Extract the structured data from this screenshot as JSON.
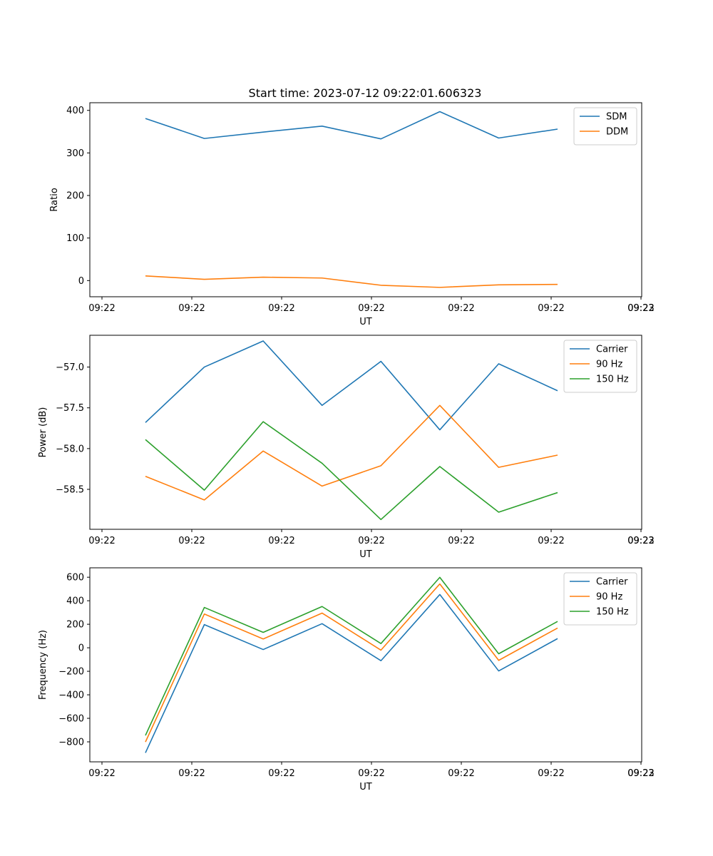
{
  "figure_title": "Start time: 2023-07-12 09:22:01.606323",
  "chart_data": [
    {
      "type": "line",
      "title": "Start time: 2023-07-12 09:22:01.606323",
      "xlabel": "UT",
      "ylabel": "Ratio",
      "x_ticks": [
        "09:22",
        "09:22",
        "09:22",
        "09:22",
        "09:22",
        "09:22",
        "09:22"
      ],
      "x_tick_end": "09:23",
      "ylim": [
        -38,
        418
      ],
      "yticks": [
        0,
        100,
        200,
        300,
        400
      ],
      "legend_position": "top-right",
      "series": [
        {
          "name": "SDM",
          "color": "#1f77b4",
          "values": [
            381,
            334,
            349,
            363,
            333,
            397,
            335,
            356
          ]
        },
        {
          "name": "DDM",
          "color": "#ff7f0e",
          "values": [
            11,
            3,
            8,
            6,
            -11,
            -16,
            -10,
            -9
          ]
        }
      ]
    },
    {
      "type": "line",
      "title": "",
      "xlabel": "UT",
      "ylabel": "Power (dB)",
      "x_ticks": [
        "09:22",
        "09:22",
        "09:22",
        "09:22",
        "09:22",
        "09:22",
        "09:22"
      ],
      "x_tick_end": "09:23",
      "ylim": [
        -58.99,
        -56.61
      ],
      "yticks": [
        -57.0,
        -57.5,
        -58.0,
        -58.5
      ],
      "ytick_labels": [
        "−57.0",
        "−57.5",
        "−58.0",
        "−58.5"
      ],
      "legend_position": "top-right",
      "series": [
        {
          "name": "Carrier",
          "color": "#1f77b4",
          "values": [
            -57.68,
            -57.0,
            -56.68,
            -57.47,
            -56.93,
            -57.77,
            -56.96,
            -57.29
          ]
        },
        {
          "name": "90 Hz",
          "color": "#ff7f0e",
          "values": [
            -58.34,
            -58.63,
            -58.03,
            -58.46,
            -58.21,
            -57.47,
            -58.23,
            -58.08
          ]
        },
        {
          "name": "150 Hz",
          "color": "#2ca02c",
          "values": [
            -57.89,
            -58.51,
            -57.67,
            -58.18,
            -58.87,
            -58.22,
            -58.78,
            -58.54
          ]
        }
      ]
    },
    {
      "type": "line",
      "title": "",
      "xlabel": "UT",
      "ylabel": "Frequency (Hz)",
      "x_ticks": [
        "09:22",
        "09:22",
        "09:22",
        "09:22",
        "09:22",
        "09:22",
        "09:22"
      ],
      "x_tick_end": "09:23",
      "ylim": [
        -970,
        680
      ],
      "yticks": [
        600,
        400,
        200,
        0,
        -200,
        -400,
        -600,
        -800
      ],
      "ytick_labels": [
        "600",
        "400",
        "200",
        "0",
        "−200",
        "−400",
        "−600",
        "−800"
      ],
      "legend_position": "top-right",
      "series": [
        {
          "name": "Carrier",
          "color": "#1f77b4",
          "values": [
            -893,
            197,
            -15,
            205,
            -110,
            453,
            -197,
            78
          ]
        },
        {
          "name": "90 Hz",
          "color": "#ff7f0e",
          "values": [
            -801,
            287,
            75,
            295,
            -20,
            543,
            -107,
            168
          ]
        },
        {
          "name": "150 Hz",
          "color": "#2ca02c",
          "values": [
            -745,
            343,
            131,
            351,
            36,
            599,
            -51,
            224
          ]
        }
      ]
    }
  ]
}
